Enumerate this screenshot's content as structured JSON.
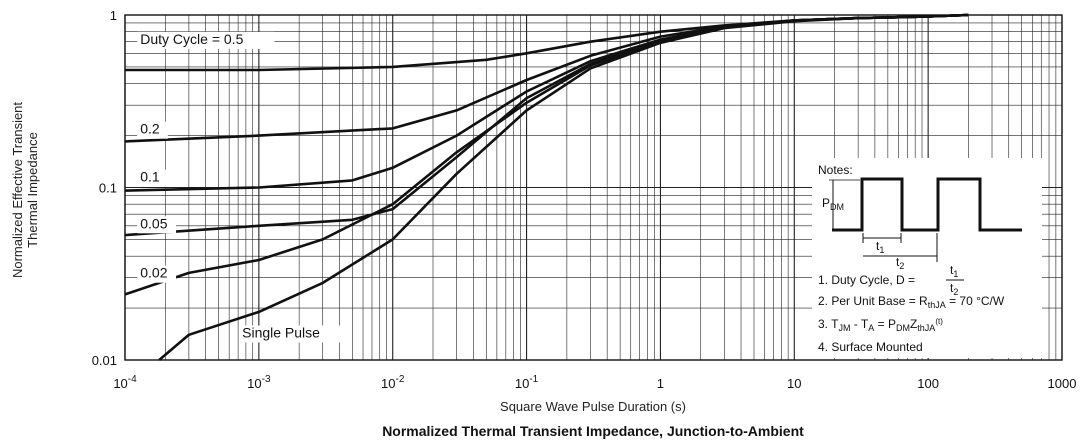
{
  "chart_data": {
    "type": "line",
    "title": "Normalized Thermal Transient Impedance, Junction-to-Ambient",
    "xlabel": "Square Wave Pulse Duration (s)",
    "ylabel_lines": [
      "Normalized Effective Transient",
      "Thermal Impedance"
    ],
    "x_scale": "log",
    "y_scale": "log",
    "xlim": [
      0.0001,
      1000
    ],
    "ylim": [
      0.01,
      1
    ],
    "grid": true,
    "x_ticks": [
      {
        "value": 0.0001,
        "base": "10",
        "exp": "-4"
      },
      {
        "value": 0.001,
        "base": "10",
        "exp": "-3"
      },
      {
        "value": 0.01,
        "base": "10",
        "exp": "-2"
      },
      {
        "value": 0.1,
        "base": "10",
        "exp": "-1"
      },
      {
        "value": 1,
        "base": "1",
        "exp": ""
      },
      {
        "value": 10,
        "base": "10",
        "exp": ""
      },
      {
        "value": 100,
        "base": "100",
        "exp": ""
      },
      {
        "value": 1000,
        "base": "1000",
        "exp": ""
      }
    ],
    "y_ticks": [
      {
        "value": 1,
        "label": "1"
      },
      {
        "value": 0.1,
        "label": "0.1"
      },
      {
        "value": 0.01,
        "label": "0.01"
      }
    ],
    "series": [
      {
        "name": "Duty Cycle = 0.5",
        "label_at": [
          0.00013,
          0.68
        ],
        "x": [
          0.0001,
          0.001,
          0.01,
          0.05,
          0.1,
          0.3,
          1,
          3,
          10,
          30,
          100,
          200
        ],
        "y": [
          0.48,
          0.48,
          0.5,
          0.55,
          0.6,
          0.7,
          0.8,
          0.87,
          0.93,
          0.96,
          0.98,
          1.0
        ]
      },
      {
        "name": "0.2",
        "label_at": [
          0.00013,
          0.205
        ],
        "x": [
          0.0001,
          0.001,
          0.01,
          0.03,
          0.1,
          0.3,
          1,
          3,
          10,
          30,
          100,
          200
        ],
        "y": [
          0.185,
          0.2,
          0.22,
          0.28,
          0.42,
          0.58,
          0.75,
          0.86,
          0.93,
          0.96,
          0.98,
          1.0
        ]
      },
      {
        "name": "0.1",
        "label_at": [
          0.00013,
          0.108
        ],
        "x": [
          0.0001,
          0.001,
          0.005,
          0.01,
          0.03,
          0.1,
          0.3,
          1,
          3,
          10,
          30,
          100,
          200
        ],
        "y": [
          0.096,
          0.1,
          0.11,
          0.13,
          0.2,
          0.36,
          0.54,
          0.72,
          0.85,
          0.93,
          0.96,
          0.98,
          1.0
        ]
      },
      {
        "name": "0.05",
        "label_at": [
          0.00013,
          0.058
        ],
        "x": [
          0.0001,
          0.001,
          0.005,
          0.01,
          0.03,
          0.1,
          0.3,
          1,
          3,
          10,
          30,
          100,
          200
        ],
        "y": [
          0.053,
          0.06,
          0.065,
          0.075,
          0.15,
          0.33,
          0.52,
          0.71,
          0.85,
          0.93,
          0.96,
          0.98,
          1.0
        ]
      },
      {
        "name": "0.02",
        "label_at": [
          0.00013,
          0.03
        ],
        "x": [
          0.0001,
          0.0003,
          0.001,
          0.003,
          0.01,
          0.03,
          0.1,
          0.3,
          1,
          3,
          10,
          30,
          100,
          200
        ],
        "y": [
          0.024,
          0.032,
          0.038,
          0.05,
          0.08,
          0.16,
          0.31,
          0.51,
          0.7,
          0.85,
          0.93,
          0.96,
          0.98,
          1.0
        ]
      },
      {
        "name": "Single Pulse",
        "label_at": [
          0.00075,
          0.0135
        ],
        "x": [
          0.00018,
          0.0003,
          0.001,
          0.003,
          0.01,
          0.03,
          0.1,
          0.3,
          1,
          3,
          10,
          30,
          100,
          200
        ],
        "y": [
          0.01,
          0.014,
          0.019,
          0.028,
          0.05,
          0.12,
          0.28,
          0.49,
          0.69,
          0.84,
          0.92,
          0.96,
          0.98,
          1.0
        ]
      }
    ]
  },
  "notes": {
    "heading": "Notes:",
    "pdm_label": "P",
    "pdm_sub": "DM",
    "t1_label": "t",
    "t1_sub": "1",
    "t2_label": "t",
    "t2_sub": "2",
    "n1_text": "1. Duty Cycle, D =",
    "n1_frac_num": "t",
    "n1_frac_num_sub": "1",
    "n1_frac_den": "t",
    "n1_frac_den_sub": "2",
    "n2_prefix": "2. Per Unit Base = R",
    "n2_sub": "thJA",
    "n2_suffix": " = 70 °C/W",
    "n3_a": "3. T",
    "n3_a_sub": "JM",
    "n3_b": " - T",
    "n3_b_sub": "A",
    "n3_c": " = P",
    "n3_c_sub": "DM",
    "n3_d": "Z",
    "n3_d_sub": "thJA",
    "n3_e": "(t)",
    "n4_text": "4. Surface Mounted"
  }
}
